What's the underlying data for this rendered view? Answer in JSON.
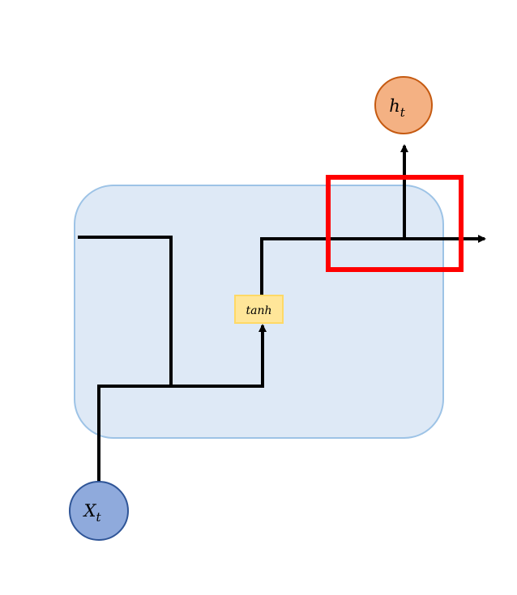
{
  "diagram": {
    "output_node": {
      "base": "h",
      "sub": "t"
    },
    "input_node": {
      "base": "X",
      "sub": "t"
    },
    "gate": {
      "label": "tanh"
    }
  },
  "colors": {
    "cell_fill": "#dee9f6",
    "cell_stroke": "#9dc3e6",
    "output_fill": "#f4b183",
    "output_stroke": "#c55a11",
    "input_fill": "#8faadc",
    "input_stroke": "#2f5597",
    "gate_fill": "#ffe699",
    "gate_stroke": "#ffd966",
    "highlight_stroke": "#ff0000",
    "line": "#000000"
  }
}
